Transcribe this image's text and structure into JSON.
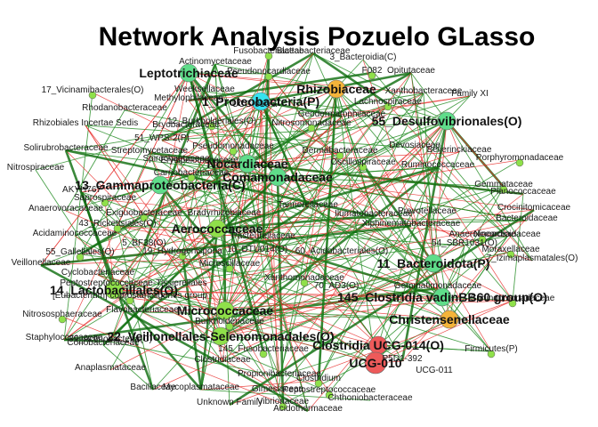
{
  "title": "Network Analysis Pozuelo GLasso",
  "colors": {
    "positive_edge": "#1f8a1f",
    "positive_edge_strong": "#0b6b0b",
    "negative_edge": "#e8302e",
    "node_green": "#8fe04a",
    "node_green_teal": "#5fdd8a",
    "node_cyan": "#36e3f0",
    "node_orange": "#f4b43a",
    "node_red": "#ee5a5a"
  },
  "hub_nodes": [
    {
      "label": "Leptotrichiaceae",
      "color": "node_green_teal"
    },
    {
      "label": "1_Proteobacteria(P)",
      "color": "node_cyan"
    },
    {
      "label": "Rhizobiaceae",
      "color": "node_orange"
    },
    {
      "label": "55_Desulfovibrionales(O)",
      "color": "node_green_teal"
    },
    {
      "label": "Nocardiaceae",
      "color": "node_green_teal"
    },
    {
      "label": "Comamonadaceae",
      "color": "node_green_teal"
    },
    {
      "label": "13_Gammaproteobacteria(C)",
      "color": "node_green_teal"
    },
    {
      "label": "Aerococcaceae",
      "color": "node_green"
    },
    {
      "label": "11_Bacteroidota(P)",
      "color": "node_green_teal"
    },
    {
      "label": "14_Lactobacillales(O)",
      "color": "node_green"
    },
    {
      "label": "145_Clostridia vadinBB60 group(O)",
      "color": "node_green_teal"
    },
    {
      "label": "Micrococcaceae",
      "color": "node_green"
    },
    {
      "label": "Christensenellaceae",
      "color": "node_orange"
    },
    {
      "label": "22_Veillonellales-Selenomonadales(O)",
      "color": "node_green"
    },
    {
      "label": "Clostridia UCG-014(O)",
      "color": "node_red"
    },
    {
      "label": "UCG-010",
      "color": "node_red"
    }
  ],
  "labels": [
    "Fusobacteriaceae",
    "Blattabacteriaceae",
    "3_Bacteroidia(C)",
    "F082",
    "Opitutaceae",
    "Actinomycetaceae",
    "Pseudonocardiaceae",
    "Xanthobacteraceae",
    "Family XI",
    "17_Vicinamibacterales(O)",
    "Methylophilaceae",
    "Weeksellaceae",
    "Lachnospiraceae",
    "Rhodanobacteraceae",
    "Rhizobiales Incertae Sedis",
    "12_Burkholderiales(O)",
    "Bryobacteraceae",
    "UCG-010 a",
    "Nitrosomonadaceae",
    "Geodermatophilaceae",
    "51_WPS-2(P)",
    "Pseudomonadaceae",
    "Solirubrobacteraceae",
    "Streptomycetaceae",
    "Dermabacteraceae",
    "Devosiaceae",
    "Beijerinckiaceae",
    "Porphyromonadaceae",
    "Nitrospiraceae",
    "Erysipelotrichaceae",
    "Oscillospiraceae",
    "Ruminococcaceae",
    "Spirochaetaceae",
    "Carnobacteriaceae",
    "Anaerovoracaceae",
    "Planococcaceae",
    "Saprospiraceae",
    "Acidaminococcaceae",
    "AKYH767",
    "Gemmataceae",
    "Crocinitomicaceae",
    "Bacteroidaceae",
    "Exiguobacteraceae",
    "Bradyrhizobiaceae",
    "Prevotellaceae",
    "43_Rickettsiales(O)",
    "Tannerellaceae",
    "Ilumatobacteraceae",
    "Anaerolineaceae",
    "Nocardioidaceae",
    "Pasteurellaceae",
    "Moraxellaceae",
    "Xiphinematobacteraceae",
    "5_BF38(O)",
    "19_Hydrogenisporia",
    "10_DTU014(O)",
    "54_SBR1031(O)",
    "55_Gallellales(O)",
    "60_Acidobacteriales(O)",
    "Veillonellaceae",
    "Microscillaceae",
    "7_Izimaplasmatales(O)",
    "Cyclobacteriaceae",
    "Xanthomonadaceae",
    "70_AD3(O)",
    "Gemmatimonadaceae",
    "[Eubacterium] coprostanoligenes group",
    "Peptostreptococcaceae-Tissierellales",
    "Flavobacteriaceae",
    "Nitrososphaeraceae",
    "Staphylococcaceae",
    "Coriobacteriaceae",
    "Burkholderiaceae",
    "Anaplasmataceae",
    "Clostridiaceae",
    "Sphingomonadaceae",
    "Propionibacteriaceae",
    "Gimesiaceae",
    "Firmicutes(P)",
    "Bacillaceae",
    "Mycoplasmataceae",
    "Clostridium",
    "UCG-011",
    "P5D1-392",
    "Peptostreptococcaceae",
    "Chthoniobacteraceae",
    "Unknown Family",
    "Vibrionaceae",
    "Acidothermaceae",
    "39_Actinobacteria(C)",
    "145_Fusobacteriaceae"
  ]
}
